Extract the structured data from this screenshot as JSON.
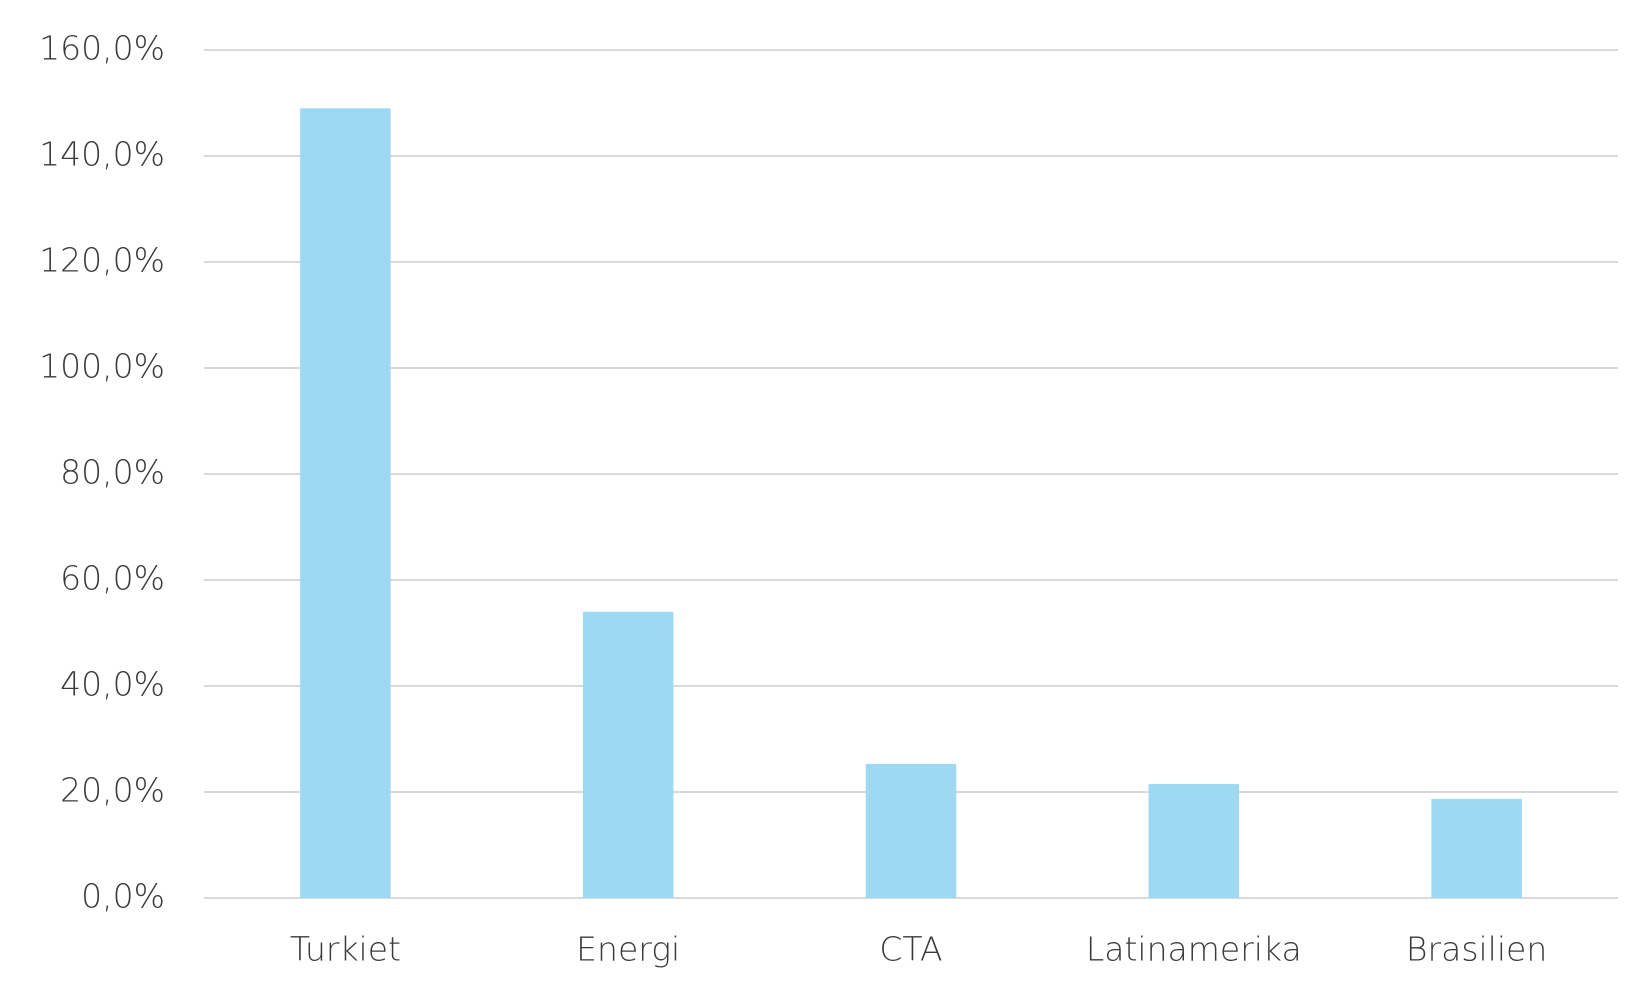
{
  "chart_data": {
    "type": "bar",
    "categories": [
      "Turkiet",
      "Energi",
      "CTA",
      "Latinamerika",
      "Brasilien"
    ],
    "values": [
      149,
      54,
      25.3,
      21.5,
      18.7
    ],
    "color": "#9dd9f2",
    "ylim": [
      0,
      160
    ],
    "yticks": [
      {
        "value": 0,
        "label": "0,0%"
      },
      {
        "value": 20,
        "label": "20,0%"
      },
      {
        "value": 40,
        "label": "40,0%"
      },
      {
        "value": 60,
        "label": "60,0%"
      },
      {
        "value": 80,
        "label": "80,0%"
      },
      {
        "value": 100,
        "label": "100,0%"
      },
      {
        "value": 120,
        "label": "120,0%"
      },
      {
        "value": 140,
        "label": "140,0%"
      },
      {
        "value": 160,
        "label": "160,0%"
      }
    ],
    "grid": true
  }
}
